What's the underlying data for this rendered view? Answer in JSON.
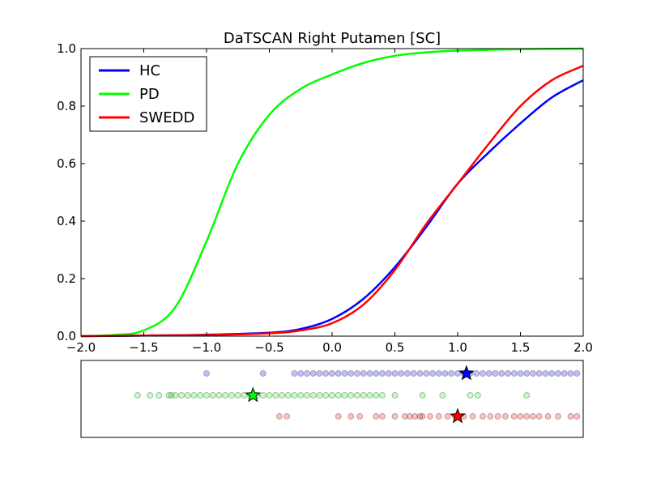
{
  "chart_data": {
    "type": "line",
    "title": "DaTSCAN Right Putamen [SC]",
    "xlabel": "",
    "ylabel": "",
    "xlim": [
      -2.0,
      2.0
    ],
    "ylim": [
      0.0,
      1.0
    ],
    "x_ticks": [
      "−2.0",
      "−1.5",
      "−1.0",
      "−0.5",
      "0.0",
      "0.5",
      "1.0",
      "1.5",
      "2.0"
    ],
    "y_ticks": [
      "0.0",
      "0.2",
      "0.4",
      "0.6",
      "0.8",
      "1.0"
    ],
    "grid": false,
    "legend_position": "top-left",
    "series": [
      {
        "name": "HC",
        "color": "#0000ff",
        "x": [
          -2.0,
          -1.5,
          -1.0,
          -0.5,
          -0.25,
          0.0,
          0.25,
          0.5,
          0.75,
          1.0,
          1.25,
          1.5,
          1.75,
          2.0
        ],
        "y": [
          0.0,
          0.002,
          0.005,
          0.012,
          0.025,
          0.06,
          0.13,
          0.24,
          0.38,
          0.53,
          0.64,
          0.74,
          0.83,
          0.89
        ]
      },
      {
        "name": "PD",
        "color": "#00ff00",
        "x": [
          -2.0,
          -1.75,
          -1.5,
          -1.25,
          -1.0,
          -0.75,
          -0.5,
          -0.25,
          0.0,
          0.25,
          0.5,
          0.75,
          1.0,
          1.5,
          2.0
        ],
        "y": [
          0.0,
          0.004,
          0.02,
          0.1,
          0.33,
          0.6,
          0.77,
          0.86,
          0.91,
          0.95,
          0.975,
          0.987,
          0.993,
          0.998,
          1.0
        ]
      },
      {
        "name": "SWEDD",
        "color": "#ff0000",
        "x": [
          -2.0,
          -1.5,
          -1.0,
          -0.5,
          -0.25,
          0.0,
          0.25,
          0.5,
          0.75,
          1.0,
          1.25,
          1.5,
          1.75,
          2.0
        ],
        "y": [
          0.0,
          0.002,
          0.004,
          0.01,
          0.02,
          0.045,
          0.11,
          0.23,
          0.39,
          0.53,
          0.67,
          0.8,
          0.89,
          0.94
        ]
      }
    ],
    "strip": [
      {
        "name": "HC",
        "color": "#0000ff",
        "mean": 1.07,
        "values": [
          -1.0,
          -0.55,
          -0.3,
          -0.25,
          -0.2,
          -0.15,
          -0.1,
          -0.05,
          0.0,
          0.05,
          0.1,
          0.15,
          0.2,
          0.25,
          0.3,
          0.35,
          0.4,
          0.45,
          0.5,
          0.55,
          0.6,
          0.65,
          0.7,
          0.75,
          0.8,
          0.85,
          0.9,
          0.95,
          1.0,
          1.05,
          1.1,
          1.15,
          1.2,
          1.25,
          1.3,
          1.35,
          1.4,
          1.45,
          1.5,
          1.55,
          1.6,
          1.65,
          1.7,
          1.75,
          1.8,
          1.85,
          1.9,
          1.95
        ]
      },
      {
        "name": "PD",
        "color": "#00ff00",
        "mean": -0.63,
        "values": [
          -1.55,
          -1.45,
          -1.38,
          -1.3,
          -1.28,
          -1.25,
          -1.2,
          -1.15,
          -1.1,
          -1.05,
          -1.0,
          -0.95,
          -0.9,
          -0.85,
          -0.8,
          -0.75,
          -0.7,
          -0.65,
          -0.6,
          -0.55,
          -0.5,
          -0.45,
          -0.4,
          -0.35,
          -0.3,
          -0.25,
          -0.2,
          -0.15,
          -0.1,
          -0.05,
          0.0,
          0.05,
          0.1,
          0.15,
          0.2,
          0.25,
          0.3,
          0.35,
          0.4,
          0.5,
          0.72,
          0.88,
          1.1,
          1.16,
          1.55
        ]
      },
      {
        "name": "SWEDD",
        "color": "#ff0000",
        "mean": 1.0,
        "values": [
          -0.42,
          -0.36,
          0.05,
          0.15,
          0.22,
          0.35,
          0.4,
          0.5,
          0.58,
          0.62,
          0.66,
          0.7,
          0.72,
          0.78,
          0.85,
          0.92,
          0.98,
          1.05,
          1.12,
          1.2,
          1.26,
          1.32,
          1.38,
          1.45,
          1.5,
          1.55,
          1.6,
          1.65,
          1.72,
          1.8,
          1.9,
          1.95
        ]
      }
    ]
  }
}
